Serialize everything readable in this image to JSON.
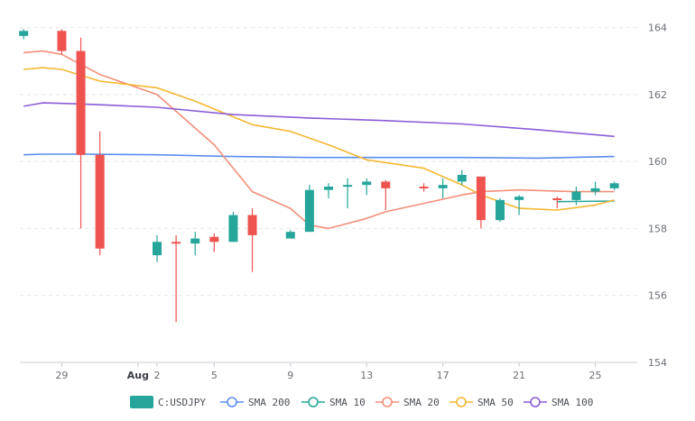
{
  "colors": {
    "up": "#26a69a",
    "down": "#ef5350",
    "sma200": "#5b8def",
    "sma10": "#26a69a",
    "sma20": "#f48f7a",
    "sma50": "#f5b731",
    "sma100": "#8a5cd6",
    "grid": "#e3e5e8",
    "axis": "#c9ccd1"
  },
  "chart_data": {
    "type": "candlestick",
    "title": "",
    "xlabel": "",
    "ylabel": "",
    "ylim": [
      154,
      164.5
    ],
    "y_ticks": [
      154,
      156,
      158,
      160,
      162,
      164
    ],
    "y_tick_labels": [
      "154",
      "156",
      "158",
      "160",
      "162",
      "164"
    ],
    "x_ticks": [
      {
        "day": 29,
        "label": "29",
        "bold": false
      },
      {
        "day": 33,
        "label": "Aug",
        "bold": true
      },
      {
        "day": 34,
        "label": "2",
        "bold": false
      },
      {
        "day": 37,
        "label": "5",
        "bold": false
      },
      {
        "day": 41,
        "label": "9",
        "bold": false
      },
      {
        "day": 45,
        "label": "13",
        "bold": false
      },
      {
        "day": 49,
        "label": "17",
        "bold": false
      },
      {
        "day": 53,
        "label": "21",
        "bold": false
      },
      {
        "day": 57,
        "label": "25",
        "bold": false
      }
    ],
    "x_range": [
      26.8,
      59.2
    ],
    "candles": [
      {
        "day": 27,
        "open": 163.75,
        "high": 163.95,
        "low": 163.65,
        "close": 163.9
      },
      {
        "day": 29,
        "open": 163.9,
        "high": 163.95,
        "low": 163.2,
        "close": 163.3
      },
      {
        "day": 30,
        "open": 163.3,
        "high": 163.7,
        "low": 158.0,
        "close": 160.2
      },
      {
        "day": 31,
        "open": 160.2,
        "high": 160.9,
        "low": 157.2,
        "close": 157.4
      },
      {
        "day": 34,
        "open": 157.2,
        "high": 157.8,
        "low": 157.0,
        "close": 157.6
      },
      {
        "day": 35,
        "open": 157.6,
        "high": 157.8,
        "low": 155.2,
        "close": 157.55
      },
      {
        "day": 36,
        "open": 157.55,
        "high": 157.9,
        "low": 157.2,
        "close": 157.7
      },
      {
        "day": 37,
        "open": 157.75,
        "high": 157.85,
        "low": 157.3,
        "close": 157.6
      },
      {
        "day": 38,
        "open": 157.6,
        "high": 158.5,
        "low": 157.6,
        "close": 158.4
      },
      {
        "day": 39,
        "open": 158.4,
        "high": 158.6,
        "low": 156.7,
        "close": 157.8
      },
      {
        "day": 41,
        "open": 157.7,
        "high": 157.95,
        "low": 157.7,
        "close": 157.9
      },
      {
        "day": 42,
        "open": 157.9,
        "high": 159.3,
        "low": 157.9,
        "close": 159.15
      },
      {
        "day": 43,
        "open": 159.15,
        "high": 159.35,
        "low": 158.9,
        "close": 159.25
      },
      {
        "day": 44,
        "open": 159.25,
        "high": 159.5,
        "low": 158.6,
        "close": 159.3
      },
      {
        "day": 45,
        "open": 159.3,
        "high": 159.5,
        "low": 159.0,
        "close": 159.4
      },
      {
        "day": 46,
        "open": 159.4,
        "high": 159.45,
        "low": 158.55,
        "close": 159.2
      },
      {
        "day": 48,
        "open": 159.25,
        "high": 159.35,
        "low": 159.1,
        "close": 159.2
      },
      {
        "day": 49,
        "open": 159.2,
        "high": 159.5,
        "low": 158.9,
        "close": 159.3
      },
      {
        "day": 50,
        "open": 159.4,
        "high": 159.75,
        "low": 159.3,
        "close": 159.6
      },
      {
        "day": 51,
        "open": 159.55,
        "high": 159.55,
        "low": 158.0,
        "close": 158.25
      },
      {
        "day": 52,
        "open": 158.25,
        "high": 158.9,
        "low": 158.2,
        "close": 158.85
      },
      {
        "day": 53,
        "open": 158.85,
        "high": 159.0,
        "low": 158.4,
        "close": 158.95
      },
      {
        "day": 55,
        "open": 158.9,
        "high": 158.95,
        "low": 158.6,
        "close": 158.85
      },
      {
        "day": 56,
        "open": 158.85,
        "high": 159.25,
        "low": 158.7,
        "close": 159.1
      },
      {
        "day": 57,
        "open": 159.1,
        "high": 159.4,
        "low": 159.0,
        "close": 159.2
      },
      {
        "day": 58,
        "open": 159.2,
        "high": 159.4,
        "low": 159.15,
        "close": 159.35
      }
    ],
    "series": [
      {
        "name": "SMA 200",
        "color_key": "sma200",
        "points": [
          [
            27,
            160.2
          ],
          [
            28,
            160.22
          ],
          [
            30,
            160.22
          ],
          [
            34,
            160.2
          ],
          [
            38,
            160.15
          ],
          [
            42,
            160.12
          ],
          [
            46,
            160.12
          ],
          [
            50,
            160.12
          ],
          [
            54,
            160.1
          ],
          [
            58,
            160.15
          ]
        ]
      },
      {
        "name": "SMA 10",
        "color_key": "sma10",
        "points": [
          [
            55,
            158.8
          ],
          [
            58,
            158.82
          ]
        ]
      },
      {
        "name": "SMA 20",
        "color_key": "sma20",
        "points": [
          [
            27,
            163.25
          ],
          [
            28,
            163.3
          ],
          [
            29,
            163.2
          ],
          [
            31,
            162.6
          ],
          [
            34,
            162.0
          ],
          [
            37,
            160.5
          ],
          [
            39,
            159.1
          ],
          [
            41,
            158.6
          ],
          [
            42,
            158.1
          ],
          [
            43,
            158.0
          ],
          [
            45,
            158.3
          ],
          [
            46,
            158.5
          ],
          [
            48,
            158.75
          ],
          [
            50,
            159.0
          ],
          [
            51,
            159.1
          ],
          [
            53,
            159.15
          ],
          [
            56,
            159.1
          ],
          [
            58,
            159.1
          ]
        ]
      },
      {
        "name": "SMA 50",
        "color_key": "sma50",
        "points": [
          [
            27,
            162.75
          ],
          [
            28,
            162.8
          ],
          [
            29,
            162.75
          ],
          [
            31,
            162.4
          ],
          [
            34,
            162.2
          ],
          [
            36,
            161.8
          ],
          [
            39,
            161.1
          ],
          [
            41,
            160.9
          ],
          [
            43,
            160.5
          ],
          [
            45,
            160.05
          ],
          [
            48,
            159.8
          ],
          [
            50,
            159.3
          ],
          [
            51,
            159.0
          ],
          [
            53,
            158.6
          ],
          [
            55,
            158.55
          ],
          [
            57,
            158.7
          ],
          [
            58,
            158.85
          ]
        ]
      },
      {
        "name": "SMA 100",
        "color_key": "sma100",
        "points": [
          [
            27,
            161.65
          ],
          [
            28,
            161.75
          ],
          [
            30,
            161.72
          ],
          [
            34,
            161.62
          ],
          [
            38,
            161.4
          ],
          [
            42,
            161.3
          ],
          [
            46,
            161.22
          ],
          [
            50,
            161.12
          ],
          [
            54,
            160.95
          ],
          [
            58,
            160.75
          ]
        ]
      }
    ],
    "legend": [
      {
        "label": "C:USDJPY",
        "kind": "box",
        "color_key": "up"
      },
      {
        "label": "SMA 200",
        "kind": "line",
        "color_key": "sma200"
      },
      {
        "label": "SMA 10",
        "kind": "line",
        "color_key": "sma10"
      },
      {
        "label": "SMA 20",
        "kind": "line",
        "color_key": "sma20"
      },
      {
        "label": "SMA 50",
        "kind": "line",
        "color_key": "sma50"
      },
      {
        "label": "SMA 100",
        "kind": "line",
        "color_key": "sma100"
      }
    ],
    "legend_position": "bottom",
    "grid": true
  }
}
